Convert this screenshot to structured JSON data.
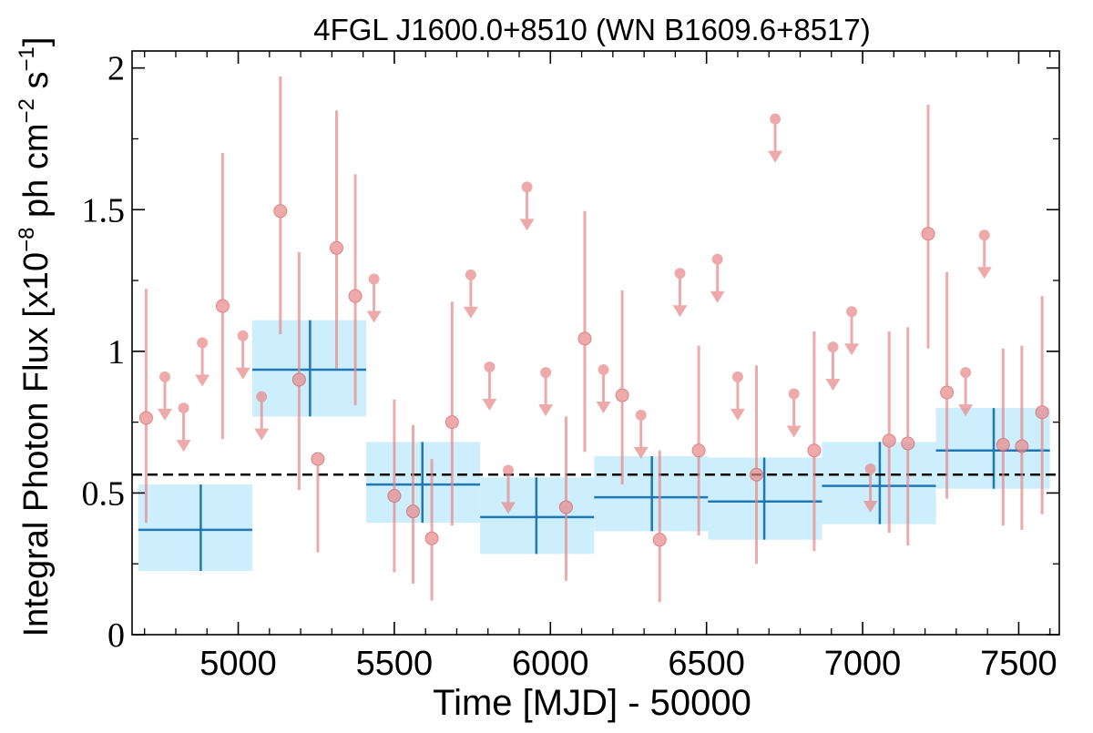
{
  "chart_data": {
    "type": "scatter",
    "title": "4FGL J1600.0+8510 (WN B1609.6+8517)",
    "xlabel": "Time [MJD] - 50000",
    "ylabel_main": "Integral Photon Flux [x10",
    "ylabel_exp1": "−8",
    "ylabel_mid": " ph cm",
    "ylabel_exp2": "−2",
    "ylabel_s": " s",
    "ylabel_exp3": "−1",
    "ylabel_end": "]",
    "xlim": [
      4660,
      7630
    ],
    "ylim": [
      0,
      2.06
    ],
    "x_ticks": [
      5000,
      5500,
      6000,
      6500,
      7000,
      7500
    ],
    "x_tick_labels": [
      "5000",
      "5500",
      "6000",
      "6500",
      "7000",
      "7500"
    ],
    "y_ticks": [
      0,
      0.5,
      1,
      1.5,
      2
    ],
    "y_tick_labels": [
      "0",
      "0.5",
      "1",
      "1.5",
      "2"
    ],
    "mean_flux": 0.565,
    "colors": {
      "points": "#e88a8a",
      "bins_line": "#1f77b4",
      "bins_fill": "#cdeefc",
      "mean_line": "#000000"
    },
    "monthly_points": [
      {
        "x": 4705,
        "y": 0.765,
        "yerr_low": 0.37,
        "yerr_high": 0.455
      },
      {
        "x": 4765,
        "y": 0.91,
        "upper_limit": true
      },
      {
        "x": 4825,
        "y": 0.8,
        "upper_limit": true
      },
      {
        "x": 4885,
        "y": 1.03,
        "upper_limit": true
      },
      {
        "x": 4950,
        "y": 1.16,
        "yerr_low": 0.47,
        "yerr_high": 0.54
      },
      {
        "x": 5015,
        "y": 1.055,
        "upper_limit": true
      },
      {
        "x": 5075,
        "y": 0.84,
        "upper_limit": true
      },
      {
        "x": 5135,
        "y": 1.495,
        "yerr_low": 0.435,
        "yerr_high": 0.475
      },
      {
        "x": 5195,
        "y": 0.9,
        "yerr_low": 0.39,
        "yerr_high": 0.45
      },
      {
        "x": 5255,
        "y": 0.62,
        "yerr_low": 0.33,
        "yerr_high": 0.0
      },
      {
        "x": 5315,
        "y": 1.365,
        "yerr_low": 0.425,
        "yerr_high": 0.485
      },
      {
        "x": 5375,
        "y": 1.195,
        "yerr_low": 0.385,
        "yerr_high": 0.43
      },
      {
        "x": 5435,
        "y": 1.255,
        "upper_limit": true
      },
      {
        "x": 5500,
        "y": 0.49,
        "yerr_low": 0.27,
        "yerr_high": 0.34
      },
      {
        "x": 5560,
        "y": 0.435,
        "yerr_low": 0.255,
        "yerr_high": 0.305
      },
      {
        "x": 5620,
        "y": 0.34,
        "yerr_low": 0.22,
        "yerr_high": 0.28
      },
      {
        "x": 5685,
        "y": 0.75,
        "yerr_low": 0.365,
        "yerr_high": 0.425
      },
      {
        "x": 5745,
        "y": 1.27,
        "upper_limit": true
      },
      {
        "x": 5805,
        "y": 0.945,
        "upper_limit": true
      },
      {
        "x": 5865,
        "y": 0.58,
        "upper_limit": true
      },
      {
        "x": 5925,
        "y": 1.58,
        "upper_limit": true
      },
      {
        "x": 5985,
        "y": 0.925,
        "upper_limit": true
      },
      {
        "x": 6050,
        "y": 0.45,
        "yerr_low": 0.26,
        "yerr_high": 0.32
      },
      {
        "x": 6110,
        "y": 1.045,
        "yerr_low": 0.4,
        "yerr_high": 0.45
      },
      {
        "x": 6170,
        "y": 0.935,
        "upper_limit": true
      },
      {
        "x": 6230,
        "y": 0.845,
        "yerr_low": 0.315,
        "yerr_high": 0.37
      },
      {
        "x": 6290,
        "y": 0.775,
        "upper_limit": true
      },
      {
        "x": 6350,
        "y": 0.335,
        "yerr_low": 0.22,
        "yerr_high": 0.315
      },
      {
        "x": 6415,
        "y": 1.275,
        "upper_limit": true
      },
      {
        "x": 6475,
        "y": 0.65,
        "yerr_low": 0.3,
        "yerr_high": 0.37
      },
      {
        "x": 6535,
        "y": 1.325,
        "upper_limit": true
      },
      {
        "x": 6600,
        "y": 0.91,
        "upper_limit": true
      },
      {
        "x": 6660,
        "y": 0.565,
        "yerr_low": 0.315,
        "yerr_high": 0.385
      },
      {
        "x": 6720,
        "y": 1.82,
        "upper_limit": true
      },
      {
        "x": 6780,
        "y": 0.85,
        "upper_limit": true
      },
      {
        "x": 6845,
        "y": 0.65,
        "yerr_low": 0.355,
        "yerr_high": 0.42
      },
      {
        "x": 6905,
        "y": 1.015,
        "upper_limit": true
      },
      {
        "x": 6965,
        "y": 1.14,
        "upper_limit": true
      },
      {
        "x": 7025,
        "y": 0.585,
        "upper_limit": true
      },
      {
        "x": 7085,
        "y": 0.685,
        "yerr_low": 0.325,
        "yerr_high": 0.385
      },
      {
        "x": 7145,
        "y": 0.675,
        "yerr_low": 0.36,
        "yerr_high": 0.41
      },
      {
        "x": 7210,
        "y": 1.415,
        "yerr_low": 0.405,
        "yerr_high": 0.455
      },
      {
        "x": 7270,
        "y": 0.855,
        "yerr_low": 0.375,
        "yerr_high": 0.425
      },
      {
        "x": 7330,
        "y": 0.925,
        "upper_limit": true
      },
      {
        "x": 7390,
        "y": 1.41,
        "upper_limit": true
      },
      {
        "x": 7450,
        "y": 0.67,
        "yerr_low": 0.285,
        "yerr_high": 0.34
      },
      {
        "x": 7510,
        "y": 0.665,
        "yerr_low": 0.295,
        "yerr_high": 0.355
      },
      {
        "x": 7575,
        "y": 0.785,
        "yerr_low": 0.36,
        "yerr_high": 0.41
      }
    ],
    "yearly_bins": [
      {
        "x_start": 4680,
        "x_end": 5045,
        "x_center": 4880,
        "y": 0.37,
        "y_low": 0.225,
        "y_high": 0.53
      },
      {
        "x_start": 5045,
        "x_end": 5410,
        "x_center": 5230,
        "y": 0.935,
        "y_low": 0.77,
        "y_high": 1.11
      },
      {
        "x_start": 5410,
        "x_end": 5775,
        "x_center": 5590,
        "y": 0.53,
        "y_low": 0.395,
        "y_high": 0.68
      },
      {
        "x_start": 5775,
        "x_end": 6140,
        "x_center": 5955,
        "y": 0.415,
        "y_low": 0.285,
        "y_high": 0.555
      },
      {
        "x_start": 6140,
        "x_end": 6505,
        "x_center": 6325,
        "y": 0.485,
        "y_low": 0.365,
        "y_high": 0.63
      },
      {
        "x_start": 6505,
        "x_end": 6870,
        "x_center": 6685,
        "y": 0.47,
        "y_low": 0.335,
        "y_high": 0.625
      },
      {
        "x_start": 6870,
        "x_end": 7235,
        "x_center": 7055,
        "y": 0.525,
        "y_low": 0.39,
        "y_high": 0.68
      },
      {
        "x_start": 7235,
        "x_end": 7600,
        "x_center": 7420,
        "y": 0.65,
        "y_low": 0.515,
        "y_high": 0.8
      }
    ]
  }
}
